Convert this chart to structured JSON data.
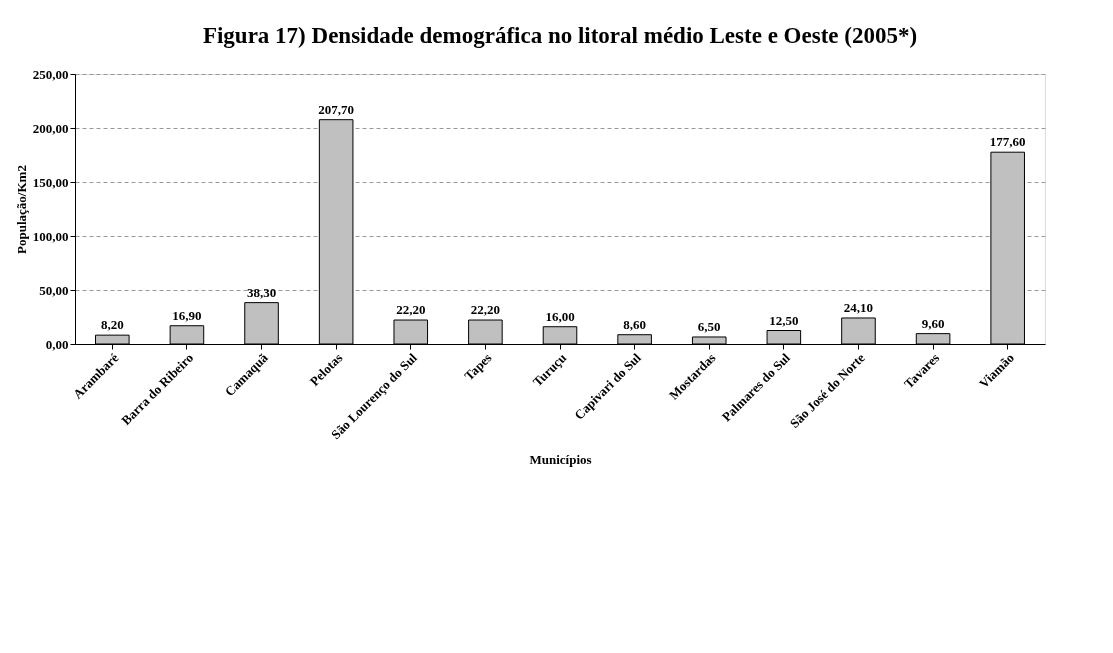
{
  "chart_data": {
    "type": "bar",
    "title": "Figura 17) Densidade demográfica no litoral médio Leste e Oeste (2005*)",
    "xlabel": "Municípios",
    "ylabel": "População/Km2",
    "categories": [
      "Arambaré",
      "Barra do Ribeiro",
      "Camaquã",
      "Pelotas",
      "São Lourenço do Sul",
      "Tapes",
      "Turuçu",
      "Capivari do Sul",
      "Mostardas",
      "Palmares do Sul",
      "São José do Norte",
      "Tavares",
      "Viamão"
    ],
    "values": [
      8.2,
      16.9,
      38.3,
      207.7,
      22.2,
      22.2,
      16.0,
      8.6,
      6.5,
      12.5,
      24.1,
      9.6,
      177.6
    ],
    "value_labels": [
      "8,20",
      "16,90",
      "38,30",
      "207,70",
      "22,20",
      "22,20",
      "16,00",
      "8,60",
      "6,50",
      "12,50",
      "24,10",
      "9,60",
      "177,60"
    ],
    "color": "#c0c0c0",
    "ylim": [
      0,
      250
    ],
    "yticks": [
      {
        "value": 0,
        "label": "0,00"
      },
      {
        "value": 50,
        "label": "50,00"
      },
      {
        "value": 100,
        "label": "100,00"
      },
      {
        "value": 150,
        "label": "150,00"
      },
      {
        "value": 200,
        "label": "200,00"
      },
      {
        "value": 250,
        "label": "250,00"
      }
    ],
    "grid": "y"
  }
}
